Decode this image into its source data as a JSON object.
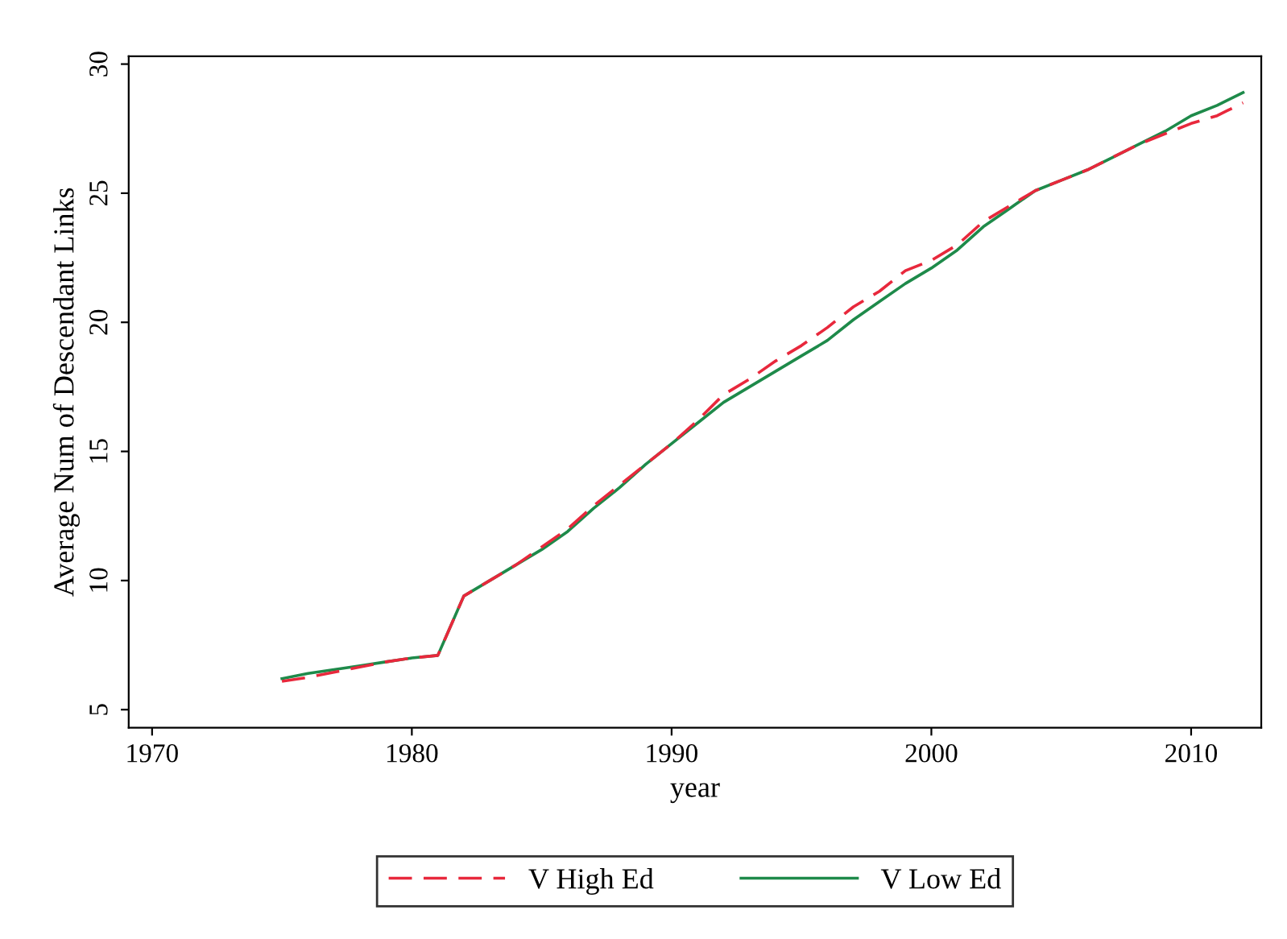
{
  "chart_data": {
    "type": "line",
    "xlabel": "year",
    "ylabel": "Average Num of Descendant Links",
    "x": [
      1975,
      1976,
      1977,
      1978,
      1979,
      1980,
      1981,
      1982,
      1983,
      1984,
      1985,
      1986,
      1987,
      1988,
      1989,
      1990,
      1991,
      1992,
      1993,
      1994,
      1995,
      1996,
      1997,
      1998,
      1999,
      2000,
      2001,
      2002,
      2003,
      2004,
      2005,
      2006,
      2007,
      2008,
      2009,
      2010,
      2011,
      2012
    ],
    "series": [
      {
        "name": "V High Ed",
        "color": "#e8283c",
        "line_style": "dashed",
        "values": [
          6.1,
          6.25,
          6.45,
          6.65,
          6.85,
          7.0,
          7.1,
          9.4,
          10.0,
          10.6,
          11.3,
          12.0,
          12.9,
          13.7,
          14.5,
          15.3,
          16.2,
          17.2,
          17.8,
          18.5,
          19.1,
          19.8,
          20.6,
          21.2,
          22.0,
          22.4,
          23.0,
          23.9,
          24.5,
          25.1,
          25.5,
          25.9,
          26.4,
          26.9,
          27.3,
          27.7,
          28.0,
          28.5
        ]
      },
      {
        "name": "V Low Ed",
        "color": "#1e8a4a",
        "line_style": "solid",
        "values": [
          6.2,
          6.4,
          6.55,
          6.7,
          6.85,
          7.0,
          7.1,
          9.4,
          10.0,
          10.6,
          11.2,
          11.9,
          12.8,
          13.6,
          14.5,
          15.3,
          16.1,
          16.9,
          17.5,
          18.1,
          18.7,
          19.3,
          20.1,
          20.8,
          21.5,
          22.1,
          22.8,
          23.7,
          24.4,
          25.1,
          25.5,
          25.9,
          26.4,
          26.9,
          27.4,
          28.0,
          28.4,
          28.9
        ]
      }
    ],
    "xlim": [
      1969.1,
      2012.7
    ],
    "xticks": [
      1970,
      1980,
      1990,
      2000,
      2010
    ],
    "ylim": [
      4.3,
      30.3
    ],
    "yticks": [
      5,
      10,
      15,
      20,
      25,
      30
    ],
    "grid": false,
    "legend": "bottom",
    "marker": "none"
  }
}
